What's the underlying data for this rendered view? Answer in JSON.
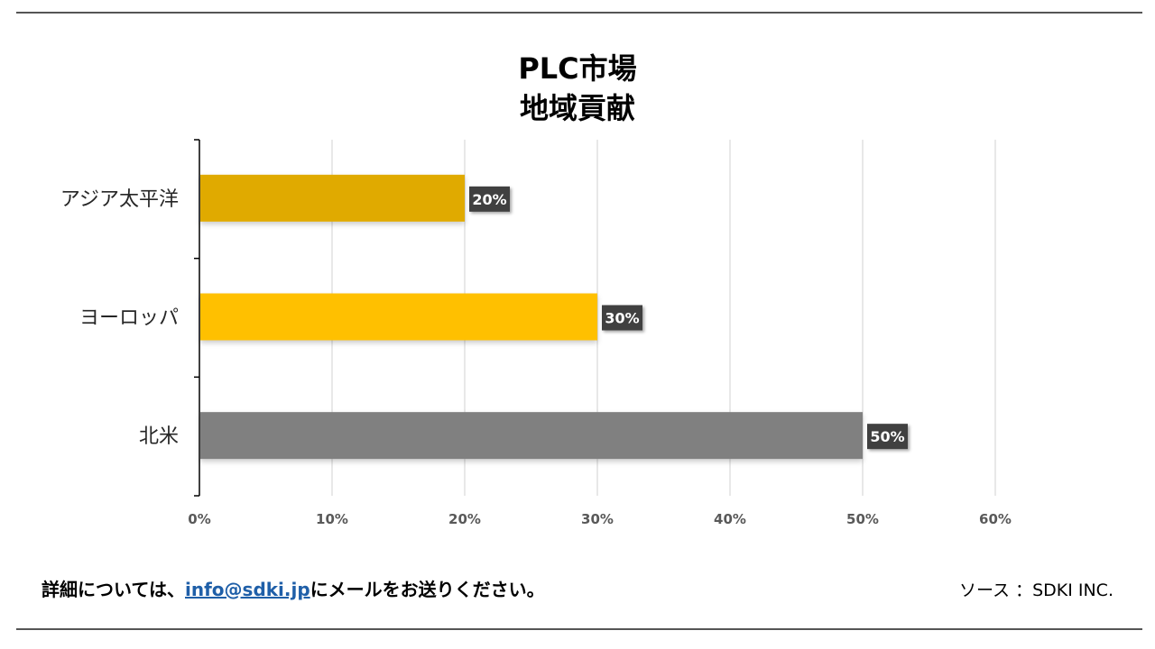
{
  "chart_data": {
    "type": "bar",
    "orientation": "horizontal",
    "title_lines": [
      "PLC市場",
      "地域貢献"
    ],
    "categories": [
      "アジア太平洋",
      "ヨーロッパ",
      "北米"
    ],
    "values": [
      20,
      30,
      50
    ],
    "value_labels": [
      "20%",
      "30%",
      "50%"
    ],
    "colors": [
      "#E0AA00",
      "#FFC000",
      "#808080"
    ],
    "xlim": [
      0,
      60
    ],
    "xticks": [
      "0%",
      "10%",
      "20%",
      "30%",
      "40%",
      "50%",
      "60%"
    ],
    "grid": "vertical",
    "xlabel": "",
    "ylabel": ""
  },
  "footer": {
    "contact_prefix": "詳細については、",
    "contact_email": "info@sdki.jp",
    "contact_suffix": "にメールをお送りください。",
    "source": "ソース ：SDKI INC."
  },
  "label_box_color": "#404040"
}
